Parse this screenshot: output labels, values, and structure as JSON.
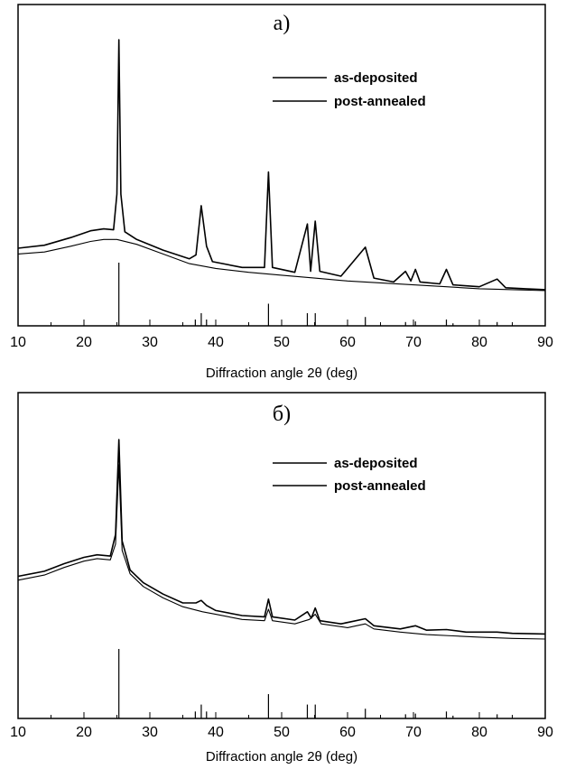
{
  "chart_data": [
    {
      "type": "line",
      "panel_label": "а)",
      "xlabel": "Diffraction angle 2θ (deg)",
      "ylabel": "",
      "xlim": [
        10,
        90
      ],
      "xticks": [
        10,
        20,
        30,
        40,
        50,
        60,
        70,
        80,
        90
      ],
      "yticks_shown": false,
      "legend": {
        "placement": "top-right",
        "entries": [
          "as-deposited",
          "post-annealed"
        ]
      },
      "series": [
        {
          "name": "post-annealed",
          "x": [
            10,
            14,
            18,
            21,
            23,
            24.5,
            25.0,
            25.3,
            25.6,
            26.2,
            28,
            32,
            36,
            37.0,
            37.8,
            38.6,
            39.5,
            44,
            47.4,
            48.0,
            48.6,
            52,
            53.9,
            54.4,
            55.1,
            55.8,
            59,
            62.7,
            64,
            67,
            68.8,
            69.6,
            70.3,
            71,
            74,
            75.0,
            76,
            80,
            82.7,
            84,
            87,
            90
          ],
          "y": [
            8.4,
            8.7,
            9.5,
            10.2,
            10.4,
            10.3,
            14,
            30,
            14,
            10.1,
            9.3,
            8.2,
            7.3,
            7.7,
            12.8,
            8.6,
            7.0,
            6.4,
            6.4,
            16.3,
            6.4,
            5.9,
            10.9,
            6.0,
            11.2,
            6.0,
            5.5,
            8.5,
            5.3,
            4.9,
            6.0,
            5.0,
            6.2,
            4.9,
            4.7,
            6.2,
            4.6,
            4.4,
            5.2,
            4.3,
            4.2,
            4.1
          ]
        },
        {
          "name": "as-deposited",
          "x": [
            10,
            14,
            18,
            21,
            23,
            25,
            28,
            32,
            36,
            40,
            45,
            50,
            55,
            60,
            65,
            70,
            75,
            80,
            85,
            90
          ],
          "y": [
            7.8,
            8.0,
            8.6,
            9.1,
            9.3,
            9.3,
            8.8,
            7.8,
            6.8,
            6.3,
            5.9,
            5.6,
            5.3,
            5.0,
            4.8,
            4.6,
            4.4,
            4.2,
            4.1,
            4.0
          ]
        }
      ],
      "reference_lines": {
        "x": [
          25.3,
          36.9,
          37.8,
          38.6,
          48.0,
          53.9,
          55.1,
          62.7,
          68.8,
          70.3,
          75.0,
          76.0,
          82.7
        ],
        "intensity": [
          100,
          10,
          20,
          10,
          35,
          20,
          20,
          14,
          6,
          7,
          10,
          4,
          6
        ]
      }
    },
    {
      "type": "line",
      "panel_label": "б)",
      "xlabel": "Diffraction angle 2θ (deg)",
      "ylabel": "",
      "xlim": [
        10,
        90
      ],
      "xticks": [
        10,
        20,
        30,
        40,
        50,
        60,
        70,
        80,
        90
      ],
      "yticks_shown": false,
      "legend": {
        "placement": "top-right",
        "entries": [
          "as-deposited",
          "post-annealed"
        ]
      },
      "series": [
        {
          "name": "post-annealed",
          "x": [
            10,
            14,
            17,
            20,
            22,
            24.0,
            24.8,
            25.3,
            25.8,
            27,
            29,
            32,
            35,
            37.0,
            37.8,
            38.6,
            40,
            44,
            47.4,
            48.0,
            48.6,
            52,
            53.9,
            54.5,
            55.1,
            55.8,
            59,
            62.7,
            64,
            68,
            70.3,
            72,
            75,
            78,
            82.7,
            85,
            90
          ],
          "y": [
            15.4,
            16.2,
            17.4,
            18.4,
            18.8,
            18.6,
            22,
            37,
            21,
            16.4,
            14.4,
            12.6,
            11.2,
            11.2,
            11.6,
            10.8,
            10.0,
            9.2,
            9.0,
            11.8,
            9.0,
            8.5,
            9.8,
            8.8,
            10.4,
            8.4,
            7.9,
            8.7,
            7.6,
            7.1,
            7.6,
            6.9,
            7.0,
            6.6,
            6.6,
            6.4,
            6.3
          ]
        },
        {
          "name": "as-deposited",
          "x": [
            10,
            14,
            17,
            20,
            22,
            24.0,
            24.8,
            25.3,
            25.8,
            27,
            29,
            32,
            35,
            38,
            40,
            44,
            47.4,
            48.0,
            48.6,
            52,
            54.2,
            55.1,
            56,
            60,
            62.7,
            64,
            68,
            72,
            76,
            80,
            85,
            90
          ],
          "y": [
            14.8,
            15.6,
            16.8,
            17.8,
            18.2,
            18.0,
            20.5,
            33,
            19.5,
            15.8,
            13.8,
            12.0,
            10.6,
            9.8,
            9.4,
            8.6,
            8.4,
            10.2,
            8.4,
            7.9,
            8.6,
            9.4,
            7.9,
            7.3,
            7.9,
            7.1,
            6.6,
            6.2,
            6.0,
            5.8,
            5.6,
            5.5
          ]
        }
      ],
      "reference_lines": {
        "x": [
          25.3,
          36.9,
          37.8,
          38.6,
          48.0,
          53.9,
          55.1,
          62.7,
          68.8,
          70.3,
          75.0,
          76.0,
          82.7
        ],
        "intensity": [
          100,
          10,
          20,
          10,
          35,
          20,
          20,
          14,
          6,
          7,
          10,
          4,
          6
        ]
      }
    }
  ]
}
